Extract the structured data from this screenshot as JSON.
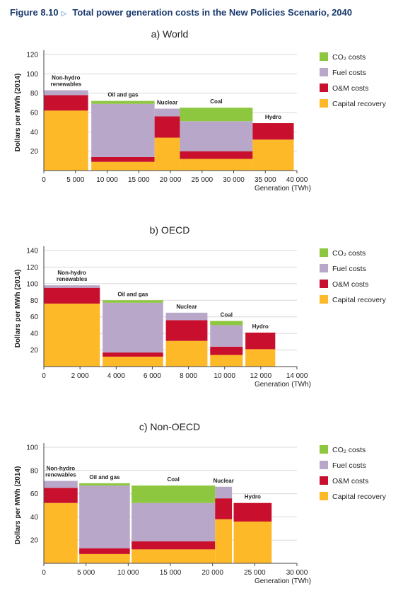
{
  "header": {
    "figure_number": "Figure 8.10",
    "title": "Total power generation costs in the New Policies Scenario, 2040"
  },
  "colors": {
    "co2": "#8dc63f",
    "fuel": "#b9a7c9",
    "om": "#c8102e",
    "capital": "#fdb927"
  },
  "legend": [
    "CO₂ costs",
    "Fuel costs",
    "O&M costs",
    "Capital recovery"
  ],
  "chart_data": [
    {
      "type": "bar",
      "subtype": "variable-width stacked bar",
      "title": "a) World",
      "ylabel": "Dollars per MWh (2014)",
      "xlabel": "Generation (TWh)",
      "ylim": [
        0,
        120
      ],
      "yticks": [
        20,
        40,
        60,
        80,
        100,
        120
      ],
      "xlim": [
        0,
        40000
      ],
      "xticks": [
        0,
        5000,
        10000,
        15000,
        20000,
        25000,
        30000,
        35000,
        40000
      ],
      "xtick_labels": [
        "0",
        "5 000",
        "10 000",
        "15 000",
        "20 000",
        "25 000",
        "30 000",
        "35 000",
        "40 000"
      ],
      "grid": true,
      "legend_position": "right",
      "bars": [
        {
          "name": "Non-hydro renewables",
          "x0": 0,
          "x1": 7000,
          "capital": 62,
          "om": 16,
          "fuel": 5,
          "co2": 0
        },
        {
          "name": "Oil and gas",
          "x0": 7500,
          "x1": 17500,
          "capital": 9,
          "om": 5,
          "fuel": 55,
          "co2": 3
        },
        {
          "name": "Nuclear",
          "x0": 17500,
          "x1": 21500,
          "capital": 34,
          "om": 22,
          "fuel": 8,
          "co2": 0
        },
        {
          "name": "Coal",
          "x0": 21500,
          "x1": 33000,
          "capital": 12,
          "om": 8,
          "fuel": 31,
          "co2": 14
        },
        {
          "name": "Hydro",
          "x0": 33000,
          "x1": 39500,
          "capital": 32,
          "om": 17,
          "fuel": 0,
          "co2": 0
        }
      ]
    },
    {
      "type": "bar",
      "subtype": "variable-width stacked bar",
      "title": "b) OECD",
      "ylabel": "Dollars per MWh (2014)",
      "xlabel": "Generation (TWh)",
      "ylim": [
        0,
        140
      ],
      "yticks": [
        20,
        40,
        60,
        80,
        100,
        120,
        140
      ],
      "xlim": [
        0,
        14000
      ],
      "xticks": [
        0,
        2000,
        4000,
        6000,
        8000,
        10000,
        12000,
        14000
      ],
      "xtick_labels": [
        "0",
        "2 000",
        "4 000",
        "6 000",
        "8 000",
        "10 000",
        "12 000",
        "14 000"
      ],
      "grid": true,
      "legend_position": "right",
      "bars": [
        {
          "name": "Non-hydro renewables",
          "x0": 0,
          "x1": 3100,
          "capital": 76,
          "om": 19,
          "fuel": 3,
          "co2": 0
        },
        {
          "name": "Oil and gas",
          "x0": 3250,
          "x1": 6600,
          "capital": 12,
          "om": 5,
          "fuel": 60,
          "co2": 3
        },
        {
          "name": "Nuclear",
          "x0": 6750,
          "x1": 9050,
          "capital": 31,
          "om": 25,
          "fuel": 9,
          "co2": 0
        },
        {
          "name": "Coal",
          "x0": 9200,
          "x1": 11000,
          "capital": 14,
          "om": 10,
          "fuel": 26,
          "co2": 5
        },
        {
          "name": "Hydro",
          "x0": 11150,
          "x1": 12800,
          "capital": 21,
          "om": 20,
          "fuel": 0,
          "co2": 0
        }
      ]
    },
    {
      "type": "bar",
      "subtype": "variable-width stacked bar",
      "title": "c) Non-OECD",
      "ylabel": "Dollars per MWh (2014)",
      "xlabel": "Generation (TWh)",
      "ylim": [
        0,
        100
      ],
      "yticks": [
        20,
        40,
        60,
        80,
        100
      ],
      "xlim": [
        0,
        30000
      ],
      "xticks": [
        0,
        5000,
        10000,
        15000,
        20000,
        25000,
        30000
      ],
      "xtick_labels": [
        "0",
        "5 000",
        "10 000",
        "15 000",
        "20 000",
        "25 000",
        "30 000"
      ],
      "grid": true,
      "legend_position": "right",
      "bars": [
        {
          "name": "Non-hydro renewables",
          "x0": 0,
          "x1": 4000,
          "capital": 52,
          "om": 13,
          "fuel": 6,
          "co2": 0
        },
        {
          "name": "Oil and gas",
          "x0": 4200,
          "x1": 10200,
          "capital": 8,
          "om": 5,
          "fuel": 54,
          "co2": 2
        },
        {
          "name": "Coal",
          "x0": 10400,
          "x1": 20300,
          "capital": 12,
          "om": 7,
          "fuel": 33,
          "co2": 15
        },
        {
          "name": "Nuclear",
          "x0": 20300,
          "x1": 22300,
          "capital": 38,
          "om": 18,
          "fuel": 10,
          "co2": 0
        },
        {
          "name": "Hydro",
          "x0": 22500,
          "x1": 27000,
          "capital": 36,
          "om": 16,
          "fuel": 0,
          "co2": 0
        }
      ]
    }
  ]
}
